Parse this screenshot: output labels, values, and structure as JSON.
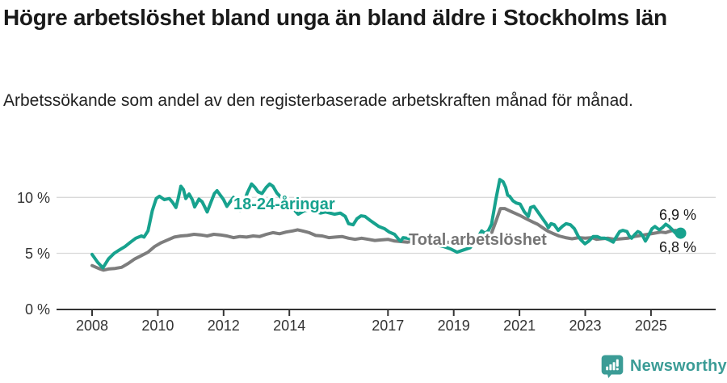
{
  "chart_data": {
    "type": "line",
    "title": "Högre arbetslöshet bland unga än bland äldre i Stockholms län",
    "subtitle": "Arbetssökande som andel av den registerbaserade arbetskraften månad för månad.",
    "unit": "%",
    "legend_position": "inline-labels-on-lines",
    "x_axis": {
      "tick_labels": [
        "2008",
        "2010",
        "2012",
        "2014",
        "2017",
        "2019",
        "2021",
        "2023",
        "2025"
      ],
      "tick_values": [
        2008,
        2010,
        2012,
        2014,
        2017,
        2019,
        2021,
        2023,
        2025
      ],
      "range": [
        2007.8,
        2026.3
      ]
    },
    "y_axis": {
      "tick_labels": [
        "0 %",
        "5 %",
        "10 %"
      ],
      "tick_values": [
        0,
        5,
        10
      ],
      "range": [
        0,
        12.5
      ],
      "grid": true
    },
    "series": [
      {
        "name": "Total arbetslöshet",
        "color": "#7d7d7d",
        "label_color": "#757575",
        "end_label": "6,9 %",
        "end_value": 6.9,
        "points": [
          [
            2008.0,
            3.9
          ],
          [
            2008.2,
            3.65
          ],
          [
            2008.35,
            3.5
          ],
          [
            2008.5,
            3.6
          ],
          [
            2008.7,
            3.65
          ],
          [
            2008.9,
            3.75
          ],
          [
            2009.1,
            4.1
          ],
          [
            2009.3,
            4.5
          ],
          [
            2009.5,
            4.8
          ],
          [
            2009.7,
            5.1
          ],
          [
            2009.9,
            5.6
          ],
          [
            2010.1,
            5.95
          ],
          [
            2010.3,
            6.2
          ],
          [
            2010.5,
            6.45
          ],
          [
            2010.7,
            6.55
          ],
          [
            2010.9,
            6.6
          ],
          [
            2011.1,
            6.7
          ],
          [
            2011.3,
            6.65
          ],
          [
            2011.5,
            6.55
          ],
          [
            2011.7,
            6.7
          ],
          [
            2011.9,
            6.65
          ],
          [
            2012.1,
            6.55
          ],
          [
            2012.3,
            6.4
          ],
          [
            2012.5,
            6.5
          ],
          [
            2012.7,
            6.45
          ],
          [
            2012.9,
            6.55
          ],
          [
            2013.1,
            6.5
          ],
          [
            2013.3,
            6.7
          ],
          [
            2013.5,
            6.85
          ],
          [
            2013.7,
            6.75
          ],
          [
            2013.9,
            6.9
          ],
          [
            2014.1,
            7.0
          ],
          [
            2014.25,
            7.1
          ],
          [
            2014.4,
            7.0
          ],
          [
            2014.6,
            6.85
          ],
          [
            2014.8,
            6.6
          ],
          [
            2015.0,
            6.55
          ],
          [
            2015.2,
            6.4
          ],
          [
            2015.4,
            6.45
          ],
          [
            2015.6,
            6.5
          ],
          [
            2015.8,
            6.35
          ],
          [
            2016.0,
            6.25
          ],
          [
            2016.2,
            6.35
          ],
          [
            2016.4,
            6.25
          ],
          [
            2016.6,
            6.15
          ],
          [
            2016.8,
            6.2
          ],
          [
            2017.0,
            6.25
          ],
          [
            2017.2,
            6.1
          ],
          [
            2017.4,
            6.05
          ],
          [
            2017.6,
            6.0
          ],
          [
            2017.8,
            6.1
          ],
          [
            2018.0,
            6.05
          ],
          [
            2018.2,
            6.1
          ],
          [
            2018.4,
            6.05
          ],
          [
            2018.6,
            6.0
          ],
          [
            2018.8,
            6.0
          ],
          [
            2019.0,
            5.95
          ],
          [
            2019.2,
            5.9
          ],
          [
            2019.4,
            5.95
          ],
          [
            2019.6,
            6.0
          ],
          [
            2019.8,
            6.1
          ],
          [
            2020.0,
            6.3
          ],
          [
            2020.15,
            6.8
          ],
          [
            2020.3,
            8.0
          ],
          [
            2020.42,
            9.0
          ],
          [
            2020.55,
            9.0
          ],
          [
            2020.7,
            8.8
          ],
          [
            2020.85,
            8.6
          ],
          [
            2021.0,
            8.4
          ],
          [
            2021.2,
            8.1
          ],
          [
            2021.4,
            7.8
          ],
          [
            2021.55,
            7.6
          ],
          [
            2021.7,
            7.3
          ],
          [
            2021.85,
            7.0
          ],
          [
            2022.0,
            6.8
          ],
          [
            2022.2,
            6.55
          ],
          [
            2022.4,
            6.4
          ],
          [
            2022.6,
            6.3
          ],
          [
            2022.8,
            6.4
          ],
          [
            2023.0,
            6.35
          ],
          [
            2023.2,
            6.4
          ],
          [
            2023.35,
            6.25
          ],
          [
            2023.5,
            6.3
          ],
          [
            2023.7,
            6.35
          ],
          [
            2023.9,
            6.25
          ],
          [
            2024.1,
            6.3
          ],
          [
            2024.3,
            6.35
          ],
          [
            2024.5,
            6.5
          ],
          [
            2024.7,
            6.6
          ],
          [
            2024.9,
            6.7
          ],
          [
            2025.1,
            6.8
          ],
          [
            2025.3,
            6.9
          ],
          [
            2025.45,
            6.85
          ],
          [
            2025.6,
            7.0
          ],
          [
            2025.75,
            7.05
          ],
          [
            2025.9,
            6.9
          ]
        ]
      },
      {
        "name": "18-24-åringar",
        "color": "#17a28e",
        "label_color": "#17a28e",
        "end_label": "6,8 %",
        "end_value": 6.8,
        "points": [
          [
            2008.0,
            4.9
          ],
          [
            2008.17,
            4.2
          ],
          [
            2008.33,
            3.7
          ],
          [
            2008.5,
            4.5
          ],
          [
            2008.67,
            5.0
          ],
          [
            2008.83,
            5.3
          ],
          [
            2009.0,
            5.6
          ],
          [
            2009.17,
            6.0
          ],
          [
            2009.33,
            6.35
          ],
          [
            2009.5,
            6.55
          ],
          [
            2009.58,
            6.45
          ],
          [
            2009.7,
            7.0
          ],
          [
            2009.83,
            8.8
          ],
          [
            2009.95,
            9.9
          ],
          [
            2010.05,
            10.1
          ],
          [
            2010.2,
            9.8
          ],
          [
            2010.35,
            9.9
          ],
          [
            2010.45,
            9.55
          ],
          [
            2010.55,
            9.1
          ],
          [
            2010.62,
            9.9
          ],
          [
            2010.7,
            11.0
          ],
          [
            2010.78,
            10.7
          ],
          [
            2010.85,
            9.9
          ],
          [
            2010.95,
            10.3
          ],
          [
            2011.05,
            9.8
          ],
          [
            2011.12,
            9.15
          ],
          [
            2011.25,
            9.85
          ],
          [
            2011.35,
            9.6
          ],
          [
            2011.5,
            8.7
          ],
          [
            2011.62,
            9.6
          ],
          [
            2011.72,
            10.35
          ],
          [
            2011.8,
            10.6
          ],
          [
            2011.9,
            10.2
          ],
          [
            2012.0,
            9.8
          ],
          [
            2012.1,
            9.2
          ],
          [
            2012.2,
            9.6
          ],
          [
            2012.3,
            10.0
          ],
          [
            2012.4,
            9.4
          ],
          [
            2012.5,
            8.85
          ],
          [
            2012.6,
            9.4
          ],
          [
            2012.72,
            10.4
          ],
          [
            2012.85,
            11.2
          ],
          [
            2012.95,
            10.9
          ],
          [
            2013.05,
            10.5
          ],
          [
            2013.17,
            10.35
          ],
          [
            2013.3,
            10.9
          ],
          [
            2013.4,
            11.2
          ],
          [
            2013.5,
            11.0
          ],
          [
            2013.62,
            10.4
          ],
          [
            2013.75,
            10.0
          ],
          [
            2013.9,
            9.7
          ],
          [
            2014.05,
            9.2
          ],
          [
            2014.27,
            8.5
          ],
          [
            2014.45,
            8.8
          ],
          [
            2014.6,
            8.9
          ],
          [
            2014.8,
            8.7
          ],
          [
            2014.95,
            8.6
          ],
          [
            2015.1,
            8.7
          ],
          [
            2015.37,
            8.5
          ],
          [
            2015.55,
            8.6
          ],
          [
            2015.7,
            8.3
          ],
          [
            2015.8,
            7.65
          ],
          [
            2015.94,
            7.55
          ],
          [
            2016.06,
            8.1
          ],
          [
            2016.18,
            8.35
          ],
          [
            2016.3,
            8.3
          ],
          [
            2016.48,
            7.9
          ],
          [
            2016.6,
            7.65
          ],
          [
            2016.72,
            7.4
          ],
          [
            2016.9,
            7.2
          ],
          [
            2017.04,
            6.9
          ],
          [
            2017.2,
            6.7
          ],
          [
            2017.34,
            6.2
          ],
          [
            2017.39,
            6.1
          ],
          [
            2017.46,
            6.4
          ],
          [
            2017.7,
            6.3
          ],
          [
            2017.9,
            6.1
          ],
          [
            2018.1,
            5.9
          ],
          [
            2018.4,
            5.8
          ],
          [
            2018.7,
            5.6
          ],
          [
            2018.9,
            5.4
          ],
          [
            2019.1,
            5.1
          ],
          [
            2019.3,
            5.3
          ],
          [
            2019.5,
            5.5
          ],
          [
            2019.6,
            5.9
          ],
          [
            2019.75,
            6.5
          ],
          [
            2019.85,
            7.0
          ],
          [
            2019.95,
            6.8
          ],
          [
            2020.05,
            7.0
          ],
          [
            2020.15,
            7.6
          ],
          [
            2020.28,
            9.8
          ],
          [
            2020.4,
            11.6
          ],
          [
            2020.5,
            11.4
          ],
          [
            2020.58,
            10.9
          ],
          [
            2020.64,
            10.2
          ],
          [
            2020.7,
            10.1
          ],
          [
            2020.8,
            9.7
          ],
          [
            2020.9,
            9.5
          ],
          [
            2021.02,
            9.4
          ],
          [
            2021.15,
            8.7
          ],
          [
            2021.27,
            8.3
          ],
          [
            2021.34,
            9.1
          ],
          [
            2021.44,
            9.2
          ],
          [
            2021.56,
            8.7
          ],
          [
            2021.69,
            8.15
          ],
          [
            2021.81,
            7.65
          ],
          [
            2021.88,
            7.3
          ],
          [
            2021.96,
            7.65
          ],
          [
            2022.06,
            7.55
          ],
          [
            2022.18,
            7.05
          ],
          [
            2022.3,
            7.4
          ],
          [
            2022.42,
            7.65
          ],
          [
            2022.55,
            7.55
          ],
          [
            2022.67,
            7.2
          ],
          [
            2022.79,
            6.5
          ],
          [
            2022.87,
            6.2
          ],
          [
            2022.99,
            5.85
          ],
          [
            2023.11,
            6.1
          ],
          [
            2023.24,
            6.5
          ],
          [
            2023.36,
            6.5
          ],
          [
            2023.48,
            6.35
          ],
          [
            2023.6,
            6.35
          ],
          [
            2023.73,
            6.2
          ],
          [
            2023.85,
            6.0
          ],
          [
            2023.92,
            6.35
          ],
          [
            2024.05,
            6.95
          ],
          [
            2024.14,
            7.05
          ],
          [
            2024.27,
            6.95
          ],
          [
            2024.34,
            6.55
          ],
          [
            2024.41,
            6.35
          ],
          [
            2024.51,
            6.7
          ],
          [
            2024.6,
            6.95
          ],
          [
            2024.67,
            6.85
          ],
          [
            2024.76,
            6.5
          ],
          [
            2024.83,
            6.1
          ],
          [
            2024.91,
            6.5
          ],
          [
            2025.03,
            7.2
          ],
          [
            2025.12,
            7.4
          ],
          [
            2025.25,
            7.1
          ],
          [
            2025.35,
            7.3
          ],
          [
            2025.45,
            7.6
          ],
          [
            2025.55,
            7.4
          ],
          [
            2025.65,
            7.1
          ],
          [
            2025.75,
            6.8
          ],
          [
            2025.82,
            6.6
          ],
          [
            2025.9,
            6.8
          ]
        ]
      }
    ]
  },
  "colors": {
    "youth_line": "#17a28e",
    "total_line": "#7d7d7d",
    "total_label": "#757575",
    "axis": "#333333",
    "grid": "#d9d9d9",
    "title": "#1a1a1a",
    "brand": "#3b9c96"
  },
  "footer": {
    "brand": "Newsworthy"
  }
}
